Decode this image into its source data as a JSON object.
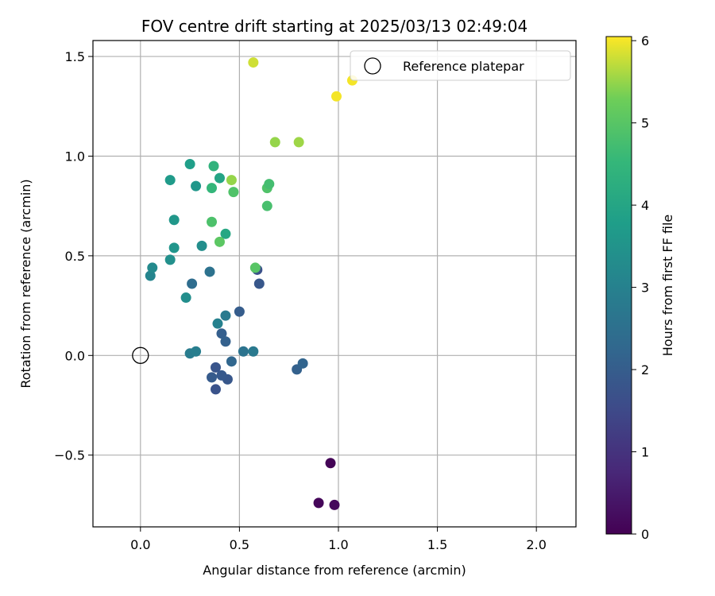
{
  "chart_data": {
    "type": "scatter",
    "title": "FOV centre drift starting at 2025/03/13 02:49:04",
    "xlabel": "Angular distance from reference (arcmin)",
    "ylabel": "Rotation from reference (arcmin)",
    "xlim": [
      -0.24,
      2.2
    ],
    "ylim": [
      -0.86,
      1.58
    ],
    "x_ticks": [
      0.0,
      0.5,
      1.0,
      1.5,
      2.0
    ],
    "x_tick_labels": [
      "0.0",
      "0.5",
      "1.0",
      "1.5",
      "2.0"
    ],
    "y_ticks": [
      -0.5,
      0.0,
      0.5,
      1.0,
      1.5
    ],
    "y_tick_labels": [
      "−0.5",
      "0.0",
      "0.5",
      "1.0",
      "1.5"
    ],
    "grid": true,
    "legend_position": "top-right",
    "legend": [
      {
        "label": "Reference platepar",
        "marker": "open-circle",
        "x": 0.0,
        "y": 0.0
      }
    ],
    "colorbar": {
      "label": "Hours from first FF file",
      "colormap": "viridis",
      "range": [
        0,
        6.05
      ],
      "ticks": [
        0,
        1,
        2,
        3,
        4,
        5,
        6
      ],
      "tick_labels": [
        "0",
        "1",
        "2",
        "3",
        "4",
        "5",
        "6"
      ]
    },
    "points": [
      {
        "x": 0.96,
        "y": -0.54,
        "hours": 0.05
      },
      {
        "x": 0.9,
        "y": -0.74,
        "hours": 0.1
      },
      {
        "x": 0.98,
        "y": -0.75,
        "hours": 0.15
      },
      {
        "x": 0.38,
        "y": -0.17,
        "hours": 1.75
      },
      {
        "x": 0.44,
        "y": -0.12,
        "hours": 1.85
      },
      {
        "x": 0.38,
        "y": -0.06,
        "hours": 1.8
      },
      {
        "x": 0.41,
        "y": -0.1,
        "hours": 1.9
      },
      {
        "x": 0.36,
        "y": -0.11,
        "hours": 1.95
      },
      {
        "x": 0.59,
        "y": 0.43,
        "hours": 1.7
      },
      {
        "x": 0.6,
        "y": 0.36,
        "hours": 1.85
      },
      {
        "x": 0.5,
        "y": 0.22,
        "hours": 2.0
      },
      {
        "x": 0.41,
        "y": 0.11,
        "hours": 2.05
      },
      {
        "x": 0.43,
        "y": 0.07,
        "hours": 2.1
      },
      {
        "x": 0.79,
        "y": -0.07,
        "hours": 2.1
      },
      {
        "x": 0.82,
        "y": -0.04,
        "hours": 2.2
      },
      {
        "x": 0.46,
        "y": -0.03,
        "hours": 2.25
      },
      {
        "x": 0.26,
        "y": 0.36,
        "hours": 2.4
      },
      {
        "x": 0.35,
        "y": 0.42,
        "hours": 2.55
      },
      {
        "x": 0.52,
        "y": 0.02,
        "hours": 2.6
      },
      {
        "x": 0.57,
        "y": 0.02,
        "hours": 2.75
      },
      {
        "x": 0.43,
        "y": 0.2,
        "hours": 2.8
      },
      {
        "x": 0.25,
        "y": 0.01,
        "hours": 2.85
      },
      {
        "x": 0.28,
        "y": 0.02,
        "hours": 2.9
      },
      {
        "x": 0.39,
        "y": 0.16,
        "hours": 3.0
      },
      {
        "x": 0.05,
        "y": 0.4,
        "hours": 3.1
      },
      {
        "x": 0.06,
        "y": 0.44,
        "hours": 3.25
      },
      {
        "x": 0.23,
        "y": 0.29,
        "hours": 3.35
      },
      {
        "x": 0.31,
        "y": 0.55,
        "hours": 3.35
      },
      {
        "x": 0.15,
        "y": 0.48,
        "hours": 3.4
      },
      {
        "x": 0.17,
        "y": 0.54,
        "hours": 3.55
      },
      {
        "x": 0.17,
        "y": 0.68,
        "hours": 3.6
      },
      {
        "x": 0.28,
        "y": 0.85,
        "hours": 3.6
      },
      {
        "x": 0.15,
        "y": 0.88,
        "hours": 3.7
      },
      {
        "x": 0.25,
        "y": 0.96,
        "hours": 3.8
      },
      {
        "x": 0.4,
        "y": 0.89,
        "hours": 3.95
      },
      {
        "x": 0.43,
        "y": 0.61,
        "hours": 4.05
      },
      {
        "x": 0.36,
        "y": 0.84,
        "hours": 4.5
      },
      {
        "x": 0.37,
        "y": 0.95,
        "hours": 4.4
      },
      {
        "x": 0.36,
        "y": 0.67,
        "hours": 4.85
      },
      {
        "x": 0.4,
        "y": 0.57,
        "hours": 5.05
      },
      {
        "x": 0.47,
        "y": 0.82,
        "hours": 4.9
      },
      {
        "x": 0.64,
        "y": 0.75,
        "hours": 4.8
      },
      {
        "x": 0.64,
        "y": 0.84,
        "hours": 4.9
      },
      {
        "x": 0.65,
        "y": 0.86,
        "hours": 4.75
      },
      {
        "x": 0.58,
        "y": 0.44,
        "hours": 5.0
      },
      {
        "x": 0.46,
        "y": 0.88,
        "hours": 5.5
      },
      {
        "x": 0.68,
        "y": 1.07,
        "hours": 5.5
      },
      {
        "x": 0.8,
        "y": 1.07,
        "hours": 5.55
      },
      {
        "x": 0.57,
        "y": 1.47,
        "hours": 5.8
      },
      {
        "x": 0.99,
        "y": 1.3,
        "hours": 6.0
      },
      {
        "x": 1.07,
        "y": 1.38,
        "hours": 6.0
      }
    ]
  }
}
